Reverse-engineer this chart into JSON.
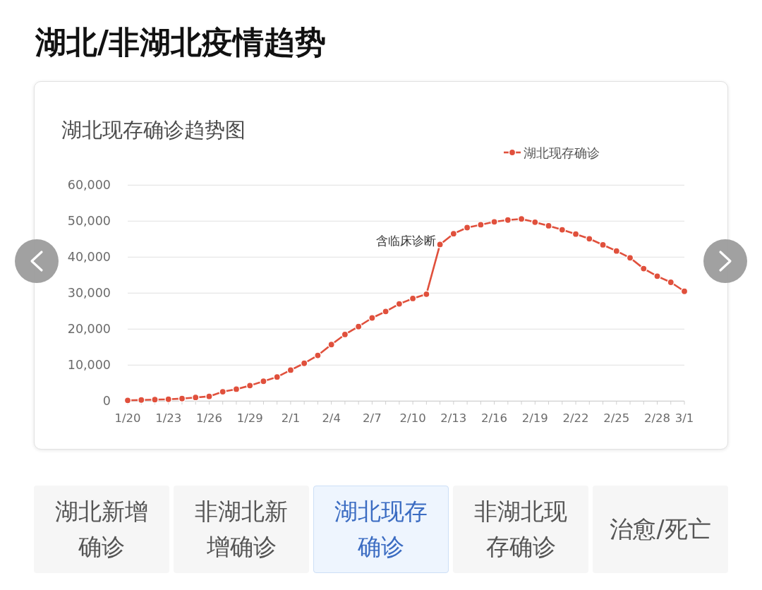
{
  "chart_data": {
    "type": "line",
    "title": "湖北/非湖北疫情趋势",
    "subtitle": "湖北现存确诊趋势图",
    "x": [
      "--01-20",
      "--01-21",
      "--01-22",
      "--01-23",
      "--01-24",
      "--01-25",
      "--01-26",
      "--01-27",
      "--01-28",
      "--01-29",
      "--01-30",
      "--01-31",
      "--02-01",
      "--02-02",
      "--02-03",
      "--02-04",
      "--02-05",
      "--02-06",
      "--02-07",
      "--02-08",
      "--02-09",
      "--02-10",
      "--02-11",
      "--02-12",
      "--02-13",
      "--02-14",
      "--02-15",
      "--02-16",
      "--02-17",
      "--02-18",
      "--02-19",
      "--02-20",
      "--02-21",
      "--02-22",
      "--02-23",
      "--02-24",
      "--02-25",
      "--02-26",
      "--02-27",
      "--02-28",
      "--02-29",
      "--03-01"
    ],
    "series": [
      {
        "name": "湖北现存确诊",
        "color": "#e0503c",
        "values": [
          200,
          300,
          400,
          500,
          700,
          1000,
          1300,
          2600,
          3300,
          4300,
          5500,
          6700,
          8600,
          10500,
          12700,
          15700,
          18500,
          20700,
          23100,
          24900,
          27000,
          28500,
          29700,
          43500,
          46500,
          48200,
          49000,
          49800,
          50300,
          50600,
          49700,
          48700,
          47600,
          46400,
          45100,
          43400,
          41700,
          39800,
          36800,
          34700,
          33000,
          30500
        ]
      }
    ],
    "xlim": [
      "--01-20",
      "--03-01"
    ],
    "xticks": [
      {
        "value": "--01-20",
        "label": "1/20"
      },
      {
        "value": "--01-21",
        "label": null
      },
      {
        "value": "--01-22",
        "label": null
      },
      {
        "value": "--01-23",
        "label": "1/23"
      },
      {
        "value": "--01-24",
        "label": null
      },
      {
        "value": "--01-25",
        "label": null
      },
      {
        "value": "--01-26",
        "label": "1/26"
      },
      {
        "value": "--01-27",
        "label": null
      },
      {
        "value": "--01-28",
        "label": null
      },
      {
        "value": "--01-29",
        "label": "1/29"
      },
      {
        "value": "--01-30",
        "label": null
      },
      {
        "value": "--01-31",
        "label": null
      },
      {
        "value": "--02-01",
        "label": "2/1"
      },
      {
        "value": "--02-02",
        "label": null
      },
      {
        "value": "--02-03",
        "label": null
      },
      {
        "value": "--02-04",
        "label": "2/4"
      },
      {
        "value": "--02-05",
        "label": null
      },
      {
        "value": "--02-06",
        "label": null
      },
      {
        "value": "--02-07",
        "label": "2/7"
      },
      {
        "value": "--02-08",
        "label": null
      },
      {
        "value": "--02-09",
        "label": null
      },
      {
        "value": "--02-10",
        "label": "2/10"
      },
      {
        "value": "--02-11",
        "label": null
      },
      {
        "value": "--02-12",
        "label": null
      },
      {
        "value": "--02-13",
        "label": "2/13"
      },
      {
        "value": "--02-14",
        "label": null
      },
      {
        "value": "--02-15",
        "label": null
      },
      {
        "value": "--02-16",
        "label": "2/16"
      },
      {
        "value": "--02-17",
        "label": null
      },
      {
        "value": "--02-18",
        "label": null
      },
      {
        "value": "--02-19",
        "label": "2/19"
      },
      {
        "value": "--02-20",
        "label": null
      },
      {
        "value": "--02-21",
        "label": null
      },
      {
        "value": "--02-22",
        "label": "2/22"
      },
      {
        "value": "--02-23",
        "label": null
      },
      {
        "value": "--02-24",
        "label": null
      },
      {
        "value": "--02-25",
        "label": "2/25"
      },
      {
        "value": "--02-26",
        "label": null
      },
      {
        "value": "--02-27",
        "label": null
      },
      {
        "value": "--02-28",
        "label": "2/28"
      },
      {
        "value": "--02-29",
        "label": null
      },
      {
        "value": "--03-01",
        "label": "3/1"
      }
    ],
    "ylim": [
      0,
      60000
    ],
    "yticks": [
      0,
      {
        "value": 10000,
        "label": "10,000"
      },
      {
        "value": 20000,
        "label": "20,000"
      },
      {
        "value": 30000,
        "label": "30,000"
      },
      {
        "value": 40000,
        "label": "40,000"
      },
      {
        "value": 50000,
        "label": "50,000"
      },
      {
        "value": 60000,
        "label": "60,000"
      }
    ],
    "grid": "y",
    "legend": "top right",
    "marker": "circle",
    "annotations": [
      {
        "text": "含临床诊断",
        "x": "--02-12",
        "y": 43500
      },
      "湖北新增确诊",
      "非湖北新增确诊",
      "湖北现存确诊",
      "非湖北现存确诊",
      "治愈/死亡"
    ]
  }
}
